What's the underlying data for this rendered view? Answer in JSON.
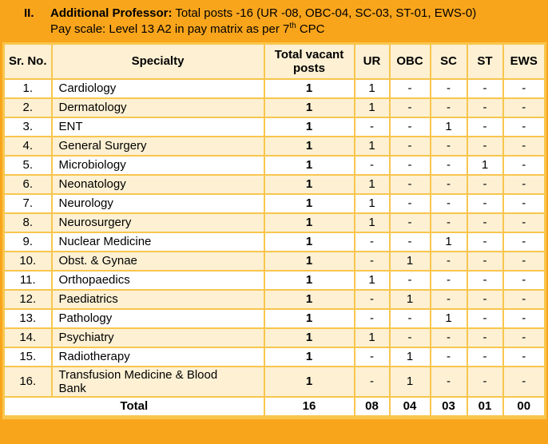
{
  "title": {
    "index": "II.",
    "heading": "Additional Professor:",
    "line1_rest": " Total posts -16 (UR -08, OBC-04, SC-03, ST-01, EWS-0)",
    "line2_prefix": "Pay scale: Level 13 A2 in pay matrix as per 7",
    "line2_sup": "th",
    "line2_suffix": " CPC"
  },
  "table": {
    "headers": [
      "Sr. No.",
      "Specialty",
      "Total vacant posts",
      "UR",
      "OBC",
      "SC",
      "ST",
      "EWS"
    ],
    "rows": [
      {
        "sr": "1.",
        "specialty": "Cardiology",
        "total": "1",
        "ur": "1",
        "obc": "-",
        "sc": "-",
        "st": "-",
        "ews": "-"
      },
      {
        "sr": "2.",
        "specialty": "Dermatology",
        "total": "1",
        "ur": "1",
        "obc": "-",
        "sc": "-",
        "st": "-",
        "ews": "-"
      },
      {
        "sr": "3.",
        "specialty": "ENT",
        "total": "1",
        "ur": "-",
        "obc": "-",
        "sc": "1",
        "st": "-",
        "ews": "-"
      },
      {
        "sr": "4.",
        "specialty": "General Surgery",
        "total": "1",
        "ur": "1",
        "obc": "-",
        "sc": "-",
        "st": "-",
        "ews": "-"
      },
      {
        "sr": "5.",
        "specialty": "Microbiology",
        "total": "1",
        "ur": "-",
        "obc": "-",
        "sc": "-",
        "st": "1",
        "ews": "-"
      },
      {
        "sr": "6.",
        "specialty": "Neonatology",
        "total": "1",
        "ur": "1",
        "obc": "-",
        "sc": "-",
        "st": "-",
        "ews": "-"
      },
      {
        "sr": "7.",
        "specialty": "Neurology",
        "total": "1",
        "ur": "1",
        "obc": "-",
        "sc": "-",
        "st": "-",
        "ews": "-"
      },
      {
        "sr": "8.",
        "specialty": "Neurosurgery",
        "total": "1",
        "ur": "1",
        "obc": "-",
        "sc": "-",
        "st": "-",
        "ews": "-"
      },
      {
        "sr": "9.",
        "specialty": "Nuclear Medicine",
        "total": "1",
        "ur": "-",
        "obc": "-",
        "sc": "1",
        "st": "-",
        "ews": "-"
      },
      {
        "sr": "10.",
        "specialty": "Obst. & Gynae",
        "total": "1",
        "ur": "-",
        "obc": "1",
        "sc": "-",
        "st": "-",
        "ews": "-"
      },
      {
        "sr": "11.",
        "specialty": "Orthopaedics",
        "total": "1",
        "ur": "1",
        "obc": "-",
        "sc": "-",
        "st": "-",
        "ews": "-"
      },
      {
        "sr": "12.",
        "specialty": "Paediatrics",
        "total": "1",
        "ur": "-",
        "obc": "1",
        "sc": "-",
        "st": "-",
        "ews": "-"
      },
      {
        "sr": "13.",
        "specialty": "Pathology",
        "total": "1",
        "ur": "-",
        "obc": "-",
        "sc": "1",
        "st": "-",
        "ews": "-"
      },
      {
        "sr": "14.",
        "specialty": "Psychiatry",
        "total": "1",
        "ur": "1",
        "obc": "-",
        "sc": "-",
        "st": "-",
        "ews": "-"
      },
      {
        "sr": "15.",
        "specialty": "Radiotherapy",
        "total": "1",
        "ur": "-",
        "obc": "1",
        "sc": "-",
        "st": "-",
        "ews": "-"
      },
      {
        "sr": "16.",
        "specialty": "Transfusion Medicine & Blood Bank",
        "total": "1",
        "ur": "-",
        "obc": "1",
        "sc": "-",
        "st": "-",
        "ews": "-"
      }
    ],
    "total_row": {
      "label": "Total",
      "total": "16",
      "ur": "08",
      "obc": "04",
      "sc": "03",
      "st": "01",
      "ews": "00"
    }
  },
  "colors": {
    "band_orange": "#F9A51C",
    "border_gold": "#F8C64E",
    "row_cream": "#FDF0D3",
    "row_white": "#FFFFFF",
    "text": "#000000"
  }
}
